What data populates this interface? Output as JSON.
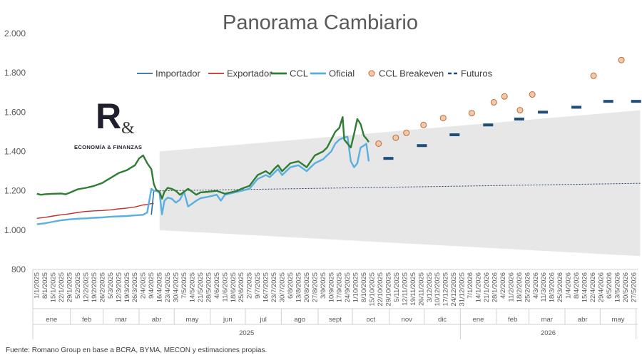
{
  "chart_data": {
    "type": "line",
    "title": "Panorama Cambiario",
    "ylim": [
      800,
      2000
    ],
    "yticks": [
      "800",
      "1.000",
      "1.200",
      "1.400",
      "1.600",
      "1.800",
      "2.000"
    ],
    "ytick_values": [
      800,
      1000,
      1200,
      1400,
      1600,
      1800,
      2000
    ],
    "grid": false,
    "legend_position": "top",
    "x_axis_type": "weekly dates",
    "x_tick_labels": [
      "1/1/2025",
      "8/1/2025",
      "15/1/2025",
      "22/1/2025",
      "29/1/2025",
      "5/2/2025",
      "12/2/2025",
      "19/2/2025",
      "26/2/2025",
      "5/3/2025",
      "12/3/2025",
      "19/3/2025",
      "26/3/2025",
      "2/4/2025",
      "9/4/2025",
      "16/4/2025",
      "23/4/2025",
      "30/4/2025",
      "7/5/2025",
      "14/5/2025",
      "21/5/2025",
      "28/5/2025",
      "4/6/2025",
      "11/6/2025",
      "18/6/2025",
      "25/6/2025",
      "2/7/2025",
      "9/7/2025",
      "16/7/2025",
      "23/7/2025",
      "30/7/2025",
      "6/8/2025",
      "13/8/2025",
      "20/8/2025",
      "27/8/2025",
      "3/9/2025",
      "10/9/2025",
      "17/9/2025",
      "24/9/2025",
      "1/10/2025",
      "8/10/2025",
      "15/10/2025",
      "22/10/2025",
      "29/10/2025",
      "5/11/2025",
      "12/11/2025",
      "19/11/2025",
      "26/11/2025",
      "3/12/2025",
      "10/12/2025",
      "17/12/2025",
      "24/12/2025",
      "31/12/2025",
      "7/1/2026",
      "14/1/2026",
      "21/1/2026",
      "28/1/2026",
      "4/2/2026",
      "11/2/2026",
      "18/2/2026",
      "25/2/2026",
      "4/3/2026",
      "11/3/2026",
      "18/3/2026",
      "25/3/2026",
      "1/4/2026",
      "8/4/2026",
      "15/4/2026",
      "22/4/2026",
      "29/4/2026",
      "6/5/2026",
      "13/5/2026",
      "20/5/2026",
      "27/5/2026"
    ],
    "months": [
      {
        "label": "ene",
        "start": 0,
        "end": 4.6
      },
      {
        "label": "feb",
        "start": 4.6,
        "end": 8.6
      },
      {
        "label": "mar",
        "start": 8.6,
        "end": 13
      },
      {
        "label": "abr",
        "start": 13,
        "end": 17.3
      },
      {
        "label": "may",
        "start": 17.3,
        "end": 21.7
      },
      {
        "label": "jun",
        "start": 21.7,
        "end": 26
      },
      {
        "label": "jul",
        "start": 26,
        "end": 30.4
      },
      {
        "label": "ago",
        "start": 30.4,
        "end": 34.9
      },
      {
        "label": "sept",
        "start": 34.9,
        "end": 39.1
      },
      {
        "label": "oct",
        "start": 39.1,
        "end": 43.6
      },
      {
        "label": "nov",
        "start": 43.6,
        "end": 47.9
      },
      {
        "label": "dic",
        "start": 47.9,
        "end": 52.3
      },
      {
        "label": "ene",
        "start": 52.3,
        "end": 56.7
      },
      {
        "label": "feb",
        "start": 56.7,
        "end": 60.7
      },
      {
        "label": "mar",
        "start": 60.7,
        "end": 65.1
      },
      {
        "label": "abr",
        "start": 65.1,
        "end": 69.4
      },
      {
        "label": "may",
        "start": 69.4,
        "end": 73.8
      }
    ],
    "years": [
      {
        "label": "2025",
        "start": 0,
        "end": 52.3
      },
      {
        "label": "2026",
        "start": 52.3,
        "end": 73.8
      }
    ],
    "legend": [
      {
        "key": "importador",
        "label": "Importador"
      },
      {
        "key": "exportador",
        "label": "Exportador"
      },
      {
        "key": "ccl",
        "label": "CCL"
      },
      {
        "key": "oficial",
        "label": "Oficial"
      },
      {
        "key": "breakeven",
        "label": "CCL Breakeven"
      },
      {
        "key": "futuros",
        "label": "Futuros"
      }
    ],
    "colors": {
      "importador": "#2e6da4",
      "exportador": "#c0302b",
      "ccl": "#2e7d32",
      "oficial": "#5aafe0",
      "breakeven_fill": "#f4c7a6",
      "breakeven_stroke": "#b8703c",
      "futuros": "#1f4e79",
      "band": "#e7e7e7",
      "trend": "#1f3a68"
    },
    "band": {
      "x": [
        15,
        73.8
      ],
      "upper": [
        1400,
        1610
      ],
      "lower": [
        1000,
        868
      ]
    },
    "trend_line": {
      "x": [
        15,
        73.8
      ],
      "y": [
        1200,
        1238
      ]
    },
    "series": {
      "ccl": {
        "x": [
          0,
          0.5,
          1,
          2,
          3,
          3.5,
          4,
          5,
          6,
          7,
          8,
          9,
          10,
          11,
          12,
          12.5,
          13,
          13.5,
          14,
          14.3,
          14.6,
          15,
          15.3,
          15.6,
          16,
          16.5,
          17,
          17.5,
          18,
          18.5,
          19,
          19.5,
          20,
          21,
          22,
          23,
          24,
          24.5,
          25,
          26,
          27,
          28,
          28.5,
          29,
          29.5,
          30,
          31,
          32,
          33,
          34,
          35,
          35.5,
          36,
          36.5,
          37,
          37.4,
          37.6,
          38,
          38.4,
          38.8,
          39.2,
          39.6,
          40,
          40.4,
          40.6
        ],
        "y": [
          1185,
          1180,
          1183,
          1185,
          1186,
          1182,
          1190,
          1208,
          1215,
          1225,
          1240,
          1265,
          1290,
          1305,
          1330,
          1365,
          1380,
          1340,
          1310,
          1235,
          1205,
          1195,
          1160,
          1195,
          1215,
          1210,
          1200,
          1180,
          1195,
          1210,
          1195,
          1180,
          1192,
          1195,
          1200,
          1185,
          1195,
          1200,
          1210,
          1225,
          1280,
          1300,
          1285,
          1310,
          1330,
          1300,
          1340,
          1350,
          1320,
          1380,
          1400,
          1420,
          1460,
          1500,
          1520,
          1575,
          1460,
          1440,
          1420,
          1490,
          1565,
          1540,
          1480,
          1460,
          1448
        ]
      },
      "oficial": {
        "x": [
          0,
          1,
          2,
          3,
          4,
          5,
          6,
          7,
          8,
          9,
          10,
          11,
          12,
          13,
          13.5,
          14,
          14.3,
          14.6,
          15,
          15.3,
          15.6,
          16,
          16.5,
          17,
          17.5,
          18,
          18.5,
          19,
          19.5,
          20,
          21,
          22,
          22.5,
          23,
          24,
          25,
          26,
          27,
          28,
          28.5,
          29,
          29.5,
          30,
          31,
          32,
          33,
          34,
          35,
          35.5,
          36,
          36.5,
          37,
          37.5,
          38,
          38.4,
          38.8,
          39.2,
          39.6,
          40,
          40.3,
          40.6
        ],
        "y": [
          1030,
          1035,
          1043,
          1050,
          1055,
          1058,
          1060,
          1063,
          1065,
          1068,
          1070,
          1072,
          1075,
          1078,
          1090,
          1210,
          1200,
          1200,
          1190,
          1080,
          1150,
          1165,
          1160,
          1140,
          1155,
          1195,
          1120,
          1135,
          1150,
          1162,
          1170,
          1180,
          1150,
          1180,
          1190,
          1200,
          1210,
          1260,
          1280,
          1270,
          1290,
          1310,
          1280,
          1320,
          1330,
          1300,
          1340,
          1360,
          1380,
          1400,
          1440,
          1460,
          1470,
          1475,
          1350,
          1320,
          1340,
          1420,
          1430,
          1440,
          1350
        ]
      },
      "exportador": {
        "x": [
          0,
          1,
          2,
          3,
          4,
          5,
          6,
          7,
          8,
          9,
          10,
          11,
          12,
          13,
          13.5,
          14,
          14.3
        ],
        "y": [
          1060,
          1065,
          1072,
          1078,
          1083,
          1090,
          1095,
          1098,
          1100,
          1103,
          1108,
          1112,
          1118,
          1128,
          1130,
          1135,
          1135
        ]
      },
      "importador": {
        "x": [
          14,
          14.3,
          14.6,
          15
        ],
        "y": [
          1078,
          1200,
          1200,
          1195
        ]
      }
    },
    "breakeven_points": {
      "x": [
        41.8,
        43.9,
        45.2,
        47.3,
        49.7,
        53.2,
        55.9,
        57.2,
        59.1,
        60.6,
        68.1,
        71.5
      ],
      "y": [
        1440,
        1470,
        1495,
        1535,
        1570,
        1595,
        1650,
        1680,
        1610,
        1690,
        1785,
        1865
      ]
    },
    "futuros_points": {
      "x": [
        43,
        47.1,
        51.1,
        55.2,
        59,
        61.9,
        66,
        69.9,
        73.3
      ],
      "y": [
        1365,
        1430,
        1485,
        1535,
        1565,
        1600,
        1625,
        1655,
        1655
      ]
    }
  },
  "source": "Fuente: Romano Group en base a BCRA, BYMA, MECON y estimaciones propias.",
  "logo": {
    "letter": "R",
    "amp": "&",
    "text": "ECONOMÍA & FINANZAS"
  }
}
